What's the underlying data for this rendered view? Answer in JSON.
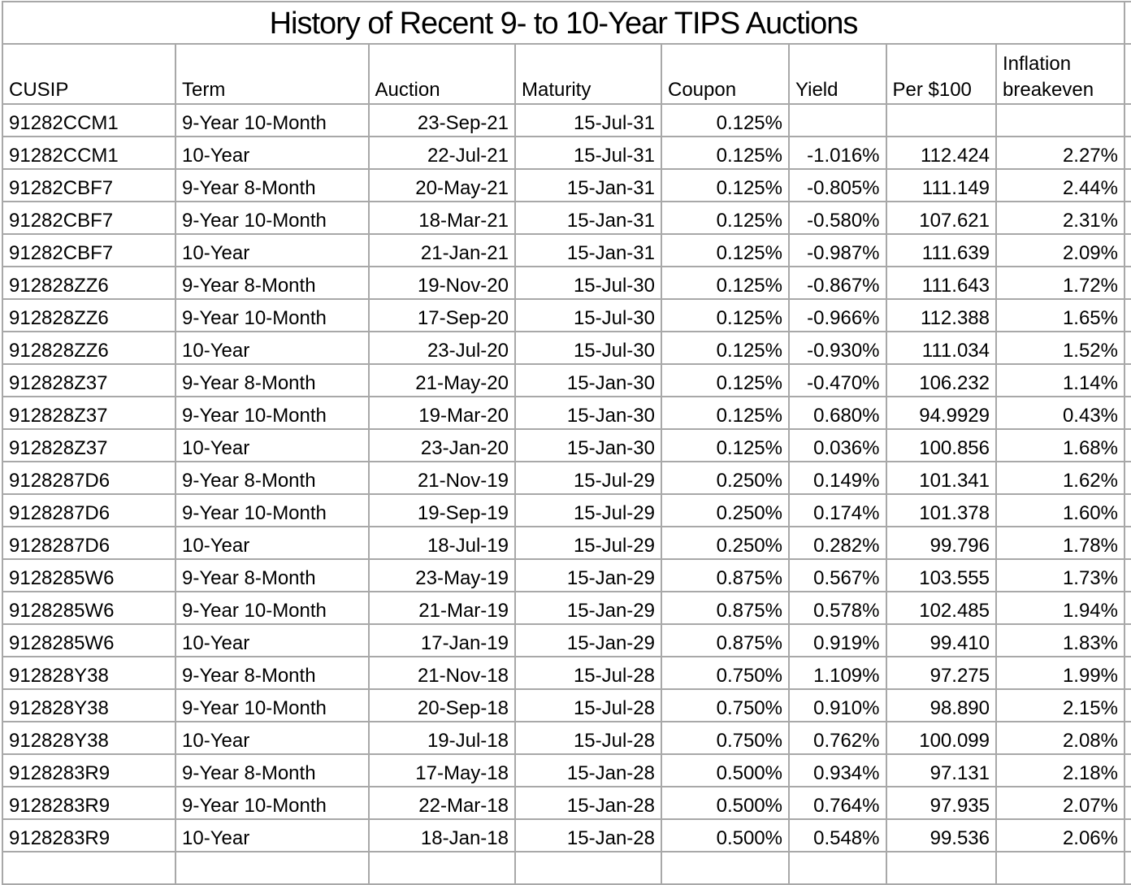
{
  "title": "History of Recent 9- to 10-Year TIPS Auctions",
  "colors": {
    "grid_line": "#a8a8a8",
    "text": "#000000",
    "background": "#ffffff"
  },
  "table": {
    "columns": [
      {
        "key": "cusip",
        "label": "CUSIP",
        "align": "left"
      },
      {
        "key": "term",
        "label": "Term",
        "align": "left"
      },
      {
        "key": "auction",
        "label": "Auction",
        "align": "right"
      },
      {
        "key": "maturity",
        "label": "Maturity",
        "align": "right"
      },
      {
        "key": "coupon",
        "label": "Coupon",
        "align": "right"
      },
      {
        "key": "yield",
        "label": "Yield",
        "align": "right"
      },
      {
        "key": "per100",
        "label": "Per $100",
        "align": "right"
      },
      {
        "key": "breakeven",
        "label": "Inflation breakeven",
        "align": "right"
      }
    ],
    "rows": [
      [
        "91282CCM1",
        "9-Year 10-Month",
        "23-Sep-21",
        "15-Jul-31",
        "0.125%",
        "",
        "",
        ""
      ],
      [
        "91282CCM1",
        "10-Year",
        "22-Jul-21",
        "15-Jul-31",
        "0.125%",
        "-1.016%",
        "112.424",
        "2.27%"
      ],
      [
        "91282CBF7",
        "9-Year 8-Month",
        "20-May-21",
        "15-Jan-31",
        "0.125%",
        "-0.805%",
        "111.149",
        "2.44%"
      ],
      [
        "91282CBF7",
        "9-Year 10-Month",
        "18-Mar-21",
        "15-Jan-31",
        "0.125%",
        "-0.580%",
        "107.621",
        "2.31%"
      ],
      [
        "91282CBF7",
        "10-Year",
        "21-Jan-21",
        "15-Jan-31",
        "0.125%",
        "-0.987%",
        "111.639",
        "2.09%"
      ],
      [
        "912828ZZ6",
        "9-Year 8-Month",
        "19-Nov-20",
        "15-Jul-30",
        "0.125%",
        "-0.867%",
        "111.643",
        "1.72%"
      ],
      [
        "912828ZZ6",
        "9-Year 10-Month",
        "17-Sep-20",
        "15-Jul-30",
        "0.125%",
        "-0.966%",
        "112.388",
        "1.65%"
      ],
      [
        "912828ZZ6",
        "10-Year",
        "23-Jul-20",
        "15-Jul-30",
        "0.125%",
        "-0.930%",
        "111.034",
        "1.52%"
      ],
      [
        "912828Z37",
        "9-Year 8-Month",
        "21-May-20",
        "15-Jan-30",
        "0.125%",
        "-0.470%",
        "106.232",
        "1.14%"
      ],
      [
        "912828Z37",
        "9-Year 10-Month",
        "19-Mar-20",
        "15-Jan-30",
        "0.125%",
        "0.680%",
        "94.9929",
        "0.43%"
      ],
      [
        "912828Z37",
        "10-Year",
        "23-Jan-20",
        "15-Jan-30",
        "0.125%",
        "0.036%",
        "100.856",
        "1.68%"
      ],
      [
        "9128287D6",
        "9-Year 8-Month",
        "21-Nov-19",
        "15-Jul-29",
        "0.250%",
        "0.149%",
        "101.341",
        "1.62%"
      ],
      [
        "9128287D6",
        "9-Year 10-Month",
        "19-Sep-19",
        "15-Jul-29",
        "0.250%",
        "0.174%",
        "101.378",
        "1.60%"
      ],
      [
        "9128287D6",
        "10-Year",
        "18-Jul-19",
        "15-Jul-29",
        "0.250%",
        "0.282%",
        "99.796",
        "1.78%"
      ],
      [
        "9128285W6",
        "9-Year 8-Month",
        "23-May-19",
        "15-Jan-29",
        "0.875%",
        "0.567%",
        "103.555",
        "1.73%"
      ],
      [
        "9128285W6",
        "9-Year 10-Month",
        "21-Mar-19",
        "15-Jan-29",
        "0.875%",
        "0.578%",
        "102.485",
        "1.94%"
      ],
      [
        "9128285W6",
        "10-Year",
        "17-Jan-19",
        "15-Jan-29",
        "0.875%",
        "0.919%",
        "99.410",
        "1.83%"
      ],
      [
        "912828Y38",
        "9-Year 8-Month",
        "21-Nov-18",
        "15-Jul-28",
        "0.750%",
        "1.109%",
        "97.275",
        "1.99%"
      ],
      [
        "912828Y38",
        "9-Year 10-Month",
        "20-Sep-18",
        "15-Jul-28",
        "0.750%",
        "0.910%",
        "98.890",
        "2.15%"
      ],
      [
        "912828Y38",
        "10-Year",
        "19-Jul-18",
        "15-Jul-28",
        "0.750%",
        "0.762%",
        "100.099",
        "2.08%"
      ],
      [
        "9128283R9",
        "9-Year 8-Month",
        "17-May-18",
        "15-Jan-28",
        "0.500%",
        "0.934%",
        "97.131",
        "2.18%"
      ],
      [
        "9128283R9",
        "9-Year 10-Month",
        "22-Mar-18",
        "15-Jan-28",
        "0.500%",
        "0.764%",
        "97.935",
        "2.07%"
      ],
      [
        "9128283R9",
        "10-Year",
        "18-Jan-18",
        "15-Jan-28",
        "0.500%",
        "0.548%",
        "99.536",
        "2.06%"
      ]
    ]
  }
}
